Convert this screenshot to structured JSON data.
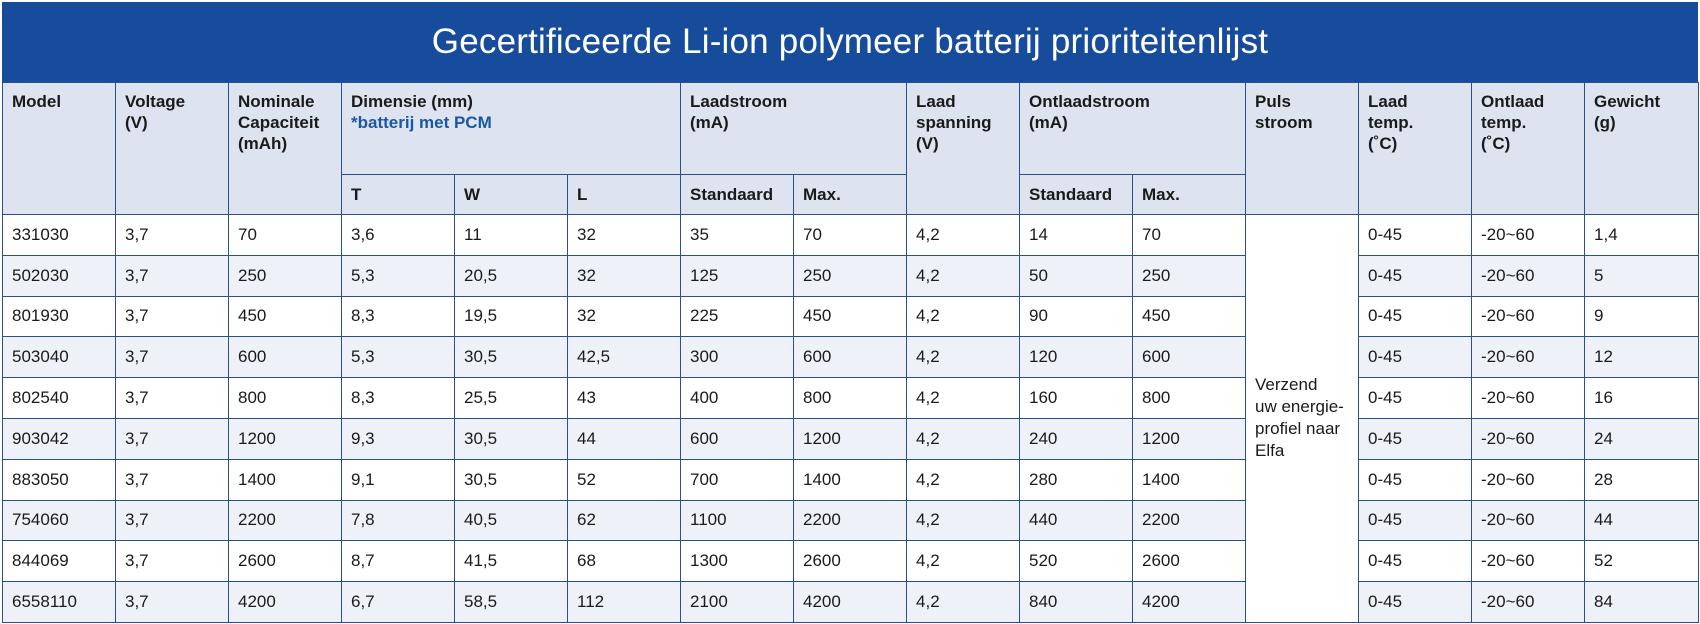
{
  "title": "Gecertificeerde Li-ion polymeer batterij prioriteitenlijst",
  "headers": {
    "model": "Model",
    "voltage": [
      "Voltage",
      "(V)"
    ],
    "capacity": [
      "Nominale",
      "Capaciteit",
      "(mAh)"
    ],
    "dimension": [
      "Dimensie (mm)"
    ],
    "dimension_note": "*batterij met PCM",
    "dim_t": "T",
    "dim_w": "W",
    "dim_l": "L",
    "charge_current": [
      "Laadstroom",
      "(mA)"
    ],
    "charge_standard": "Standaard",
    "charge_max": "Max.",
    "charge_voltage": [
      "Laad",
      "spanning",
      "(V)"
    ],
    "discharge_current": [
      "Ontlaadstroom",
      "(mA)"
    ],
    "discharge_standard": "Standaard",
    "discharge_max": "Max.",
    "pulse_current": [
      "Puls",
      "stroom"
    ],
    "charge_temp": [
      "Laad",
      "temp.",
      "(˚C)"
    ],
    "discharge_temp": [
      "Ontlaad",
      "temp.",
      "(˚C)"
    ],
    "weight": [
      "Gewicht",
      "(g)"
    ]
  },
  "pulse_note": [
    "Verzend",
    "uw energie-",
    "profiel naar",
    "Elfa"
  ],
  "rows": [
    [
      "331030",
      "3,7",
      "70",
      "3,6",
      "11",
      "32",
      "35",
      "70",
      "4,2",
      "14",
      "70",
      "0-45",
      "-20~60",
      "1,4"
    ],
    [
      "502030",
      "3,7",
      "250",
      "5,3",
      "20,5",
      "32",
      "125",
      "250",
      "4,2",
      "50",
      "250",
      "0-45",
      "-20~60",
      "5"
    ],
    [
      "801930",
      "3,7",
      "450",
      "8,3",
      "19,5",
      "32",
      "225",
      "450",
      "4,2",
      "90",
      "450",
      "0-45",
      "-20~60",
      "9"
    ],
    [
      "503040",
      "3,7",
      "600",
      "5,3",
      "30,5",
      "42,5",
      "300",
      "600",
      "4,2",
      "120",
      "600",
      "0-45",
      "-20~60",
      "12"
    ],
    [
      "802540",
      "3,7",
      "800",
      "8,3",
      "25,5",
      "43",
      "400",
      "800",
      "4,2",
      "160",
      "800",
      "0-45",
      "-20~60",
      "16"
    ],
    [
      "903042",
      "3,7",
      "1200",
      "9,3",
      "30,5",
      "44",
      "600",
      "1200",
      "4,2",
      "240",
      "1200",
      "0-45",
      "-20~60",
      "24"
    ],
    [
      "883050",
      "3,7",
      "1400",
      "9,1",
      "30,5",
      "52",
      "700",
      "1400",
      "4,2",
      "280",
      "1400",
      "0-45",
      "-20~60",
      "28"
    ],
    [
      "754060",
      "3,7",
      "2200",
      "7,8",
      "40,5",
      "62",
      "1100",
      "2200",
      "4,2",
      "440",
      "2200",
      "0-45",
      "-20~60",
      "44"
    ],
    [
      "844069",
      "3,7",
      "2600",
      "8,7",
      "41,5",
      "68",
      "1300",
      "2600",
      "4,2",
      "520",
      "2600",
      "0-45",
      "-20~60",
      "52"
    ],
    [
      "6558110",
      "3,7",
      "4200",
      "6,7",
      "58,5",
      "112",
      "2100",
      "4200",
      "4,2",
      "840",
      "4200",
      "0-45",
      "-20~60",
      "84"
    ]
  ]
}
